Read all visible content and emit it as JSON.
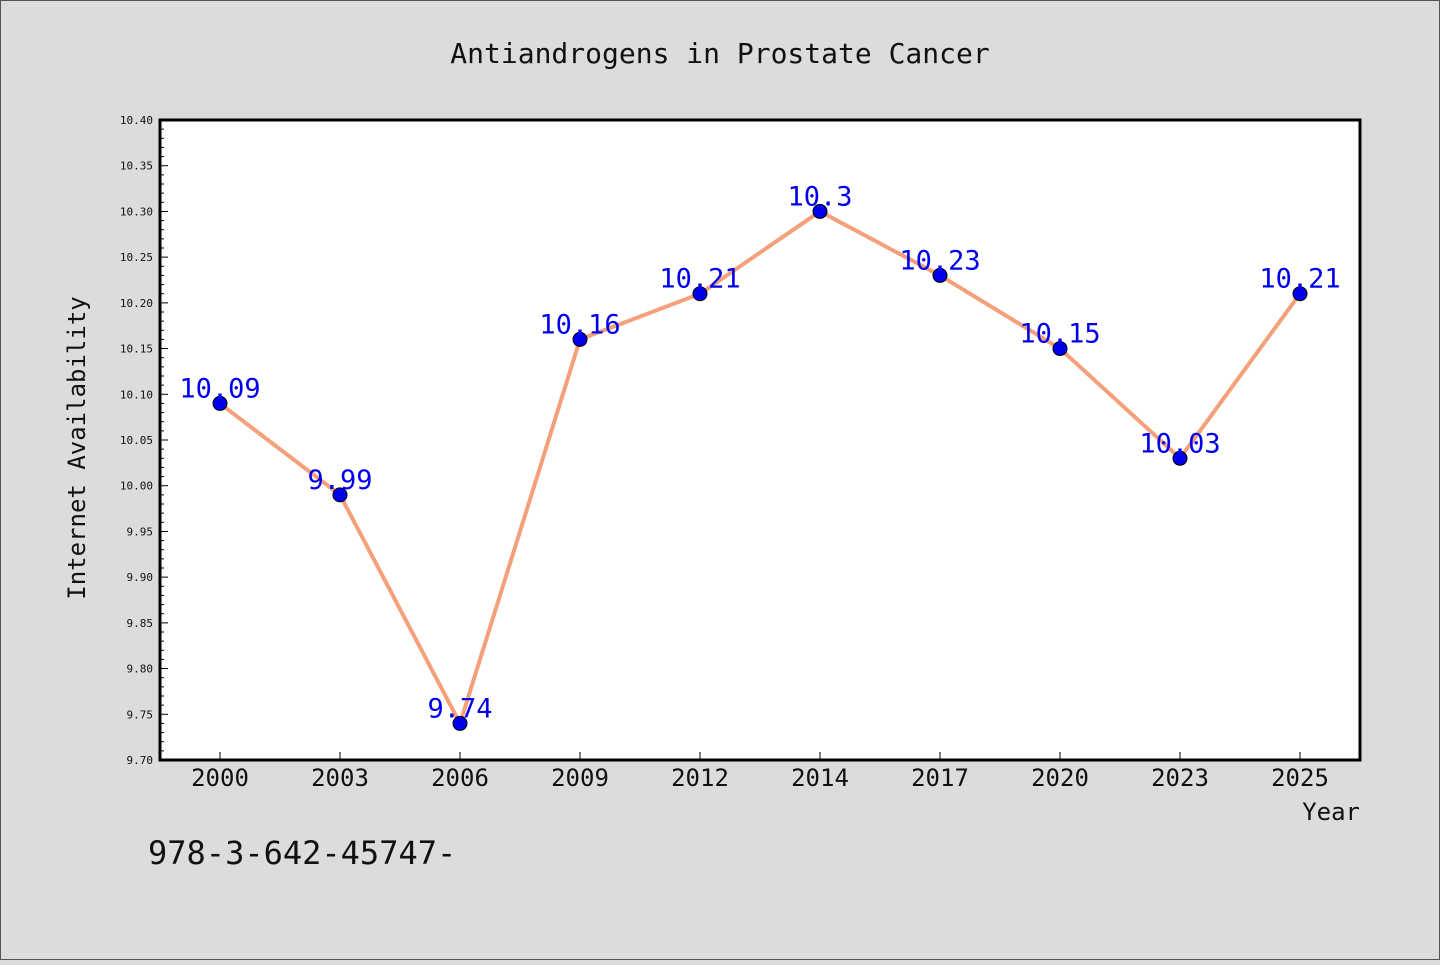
{
  "chart_data": {
    "type": "line",
    "title": "Antiandrogens in Prostate Cancer",
    "xlabel": "Year",
    "ylabel": "Internet Availability",
    "categories": [
      "2000",
      "2003",
      "2006",
      "2009",
      "2012",
      "2014",
      "2017",
      "2020",
      "2023",
      "2025"
    ],
    "series": [
      {
        "values": [
          10.09,
          9.99,
          9.74,
          10.16,
          10.21,
          10.3,
          10.23,
          10.15,
          10.03,
          10.21
        ],
        "labels": [
          "10.09",
          "9.99",
          "9.74",
          "10.16",
          "10.21",
          "10.3",
          "10.23",
          "10.15",
          "10.03",
          "10.21"
        ],
        "line_color": "#f4a07a",
        "marker_color": "#0000ee"
      }
    ],
    "ylim": [
      9.7,
      10.4
    ],
    "yticks": [
      "9.70",
      "9.75",
      "9.80",
      "9.85",
      "9.90",
      "9.95",
      "10.00",
      "10.05",
      "10.10",
      "10.15",
      "10.20",
      "10.25",
      "10.30",
      "10.35",
      "10.40"
    ],
    "grid": false,
    "legend": "none"
  },
  "footer_text": "978-3-642-45747-",
  "colors": {
    "background": "#dcdcdc",
    "plot_background": "#ffffff",
    "label_color": "#0000ee"
  }
}
